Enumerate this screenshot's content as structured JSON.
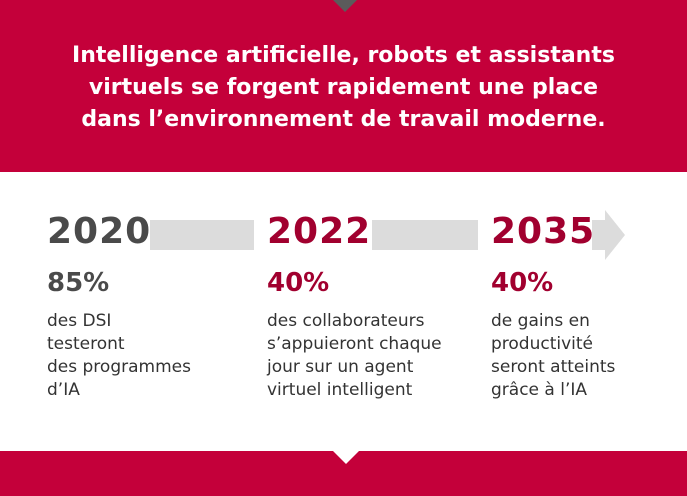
{
  "colors": {
    "band": "#c4003a",
    "dark_red_text": "#a1002f",
    "gray_text": "#4a4a4a",
    "arrow": "#dcdcdc"
  },
  "header": {
    "title_lines": [
      "Intelligence artificielle, robots et assistants",
      "virtuels se forgent rapidement une place",
      "dans l’environnement de travail moderne."
    ]
  },
  "timeline": [
    {
      "year": "2020",
      "percent": "85%",
      "description_lines": [
        "des DSI",
        "testeront",
        "des programmes",
        "d’IA"
      ]
    },
    {
      "year": "2022",
      "percent": "40%",
      "description_lines": [
        "des collaborateurs",
        "s’appuieront chaque",
        "jour sur un agent",
        "virtuel intelligent"
      ]
    },
    {
      "year": "2035",
      "percent": "40%",
      "description_lines": [
        "de gains en",
        "productivité",
        "seront atteints",
        "grâce à l’IA"
      ]
    }
  ],
  "icons": {
    "top_notch": "down-triangle-icon",
    "timeline_arrow": "arrow-right-icon",
    "bottom_notch": "down-triangle-icon"
  }
}
